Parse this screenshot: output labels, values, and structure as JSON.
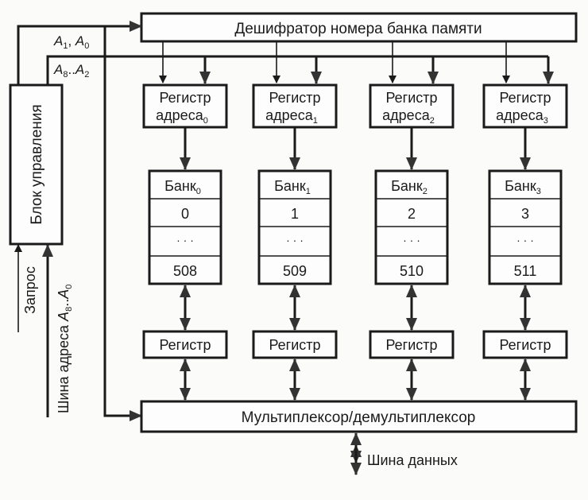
{
  "decoder": {
    "label": "Дешифратор номера банка памяти"
  },
  "control": {
    "label": "Блок управления"
  },
  "signals": {
    "a1a0": {
      "main": "A",
      "s1": "1",
      "sep": ", ",
      "s2": "0",
      "main2": "A"
    },
    "a8a2": {
      "main": "A",
      "s1": "8",
      "sep": "..",
      "s2": "2",
      "main2": "A"
    },
    "request": "Запрос",
    "address_bus": {
      "prefix": "Шина адреса ",
      "main": "A",
      "s1": "8",
      "sep": "..",
      "s2": "0",
      "main2": "A"
    }
  },
  "columns": [
    {
      "reg_label": "Регистр",
      "reg_sub": "адреса",
      "index": "0",
      "bank": "Банк",
      "first": "0",
      "dots": "· · ·",
      "last": "508",
      "data_reg": "Регистр"
    },
    {
      "reg_label": "Регистр",
      "reg_sub": "адреса",
      "index": "1",
      "bank": "Банк",
      "first": "1",
      "dots": "· · ·",
      "last": "509",
      "data_reg": "Регистр"
    },
    {
      "reg_label": "Регистр",
      "reg_sub": "адреса",
      "index": "2",
      "bank": "Банк",
      "first": "2",
      "dots": "· · ·",
      "last": "510",
      "data_reg": "Регистр"
    },
    {
      "reg_label": "Регистр",
      "reg_sub": "адреса",
      "index": "3",
      "bank": "Банк",
      "first": "3",
      "dots": "· · ·",
      "last": "511",
      "data_reg": "Регистр"
    }
  ],
  "mux": {
    "label": "Мультиплексор/демультиплексор"
  },
  "data_bus": {
    "label": "Шина данных"
  }
}
